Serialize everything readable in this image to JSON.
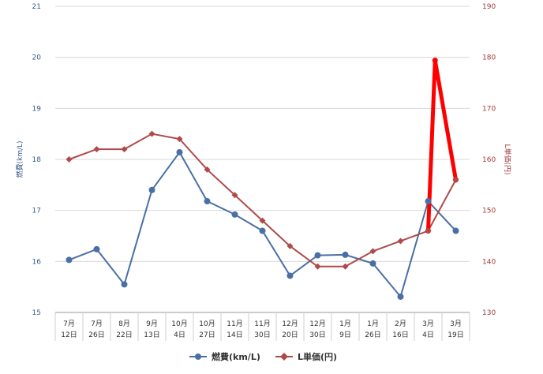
{
  "chart_data": {
    "type": "line",
    "categories": [
      [
        "7月",
        "12日"
      ],
      [
        "7月",
        "26日"
      ],
      [
        "8月",
        "22日"
      ],
      [
        "9月",
        "13日"
      ],
      [
        "10月",
        "4日"
      ],
      [
        "10月",
        "27日"
      ],
      [
        "11月",
        "14日"
      ],
      [
        "11月",
        "30日"
      ],
      [
        "12月",
        "20日"
      ],
      [
        "12月",
        "30日"
      ],
      [
        "1月",
        "9日"
      ],
      [
        "1月",
        "26日"
      ],
      [
        "2月",
        "16日"
      ],
      [
        "3月",
        "4日"
      ],
      [
        "3月",
        "19日"
      ]
    ],
    "y_left": {
      "label": "燃費(km/L)",
      "min": 15,
      "max": 21,
      "ticks": [
        15,
        16,
        17,
        18,
        19,
        20,
        21
      ]
    },
    "y_right": {
      "label": "L単価(円)",
      "min": 130,
      "max": 190,
      "ticks": [
        130,
        140,
        150,
        160,
        170,
        180,
        190
      ]
    },
    "series": [
      {
        "name": "燃費(km/L)",
        "axis": "left",
        "color": "#4a6fa5",
        "marker": "circle",
        "values": [
          16.03,
          16.24,
          15.55,
          17.4,
          18.14,
          17.18,
          16.92,
          16.6,
          15.72,
          16.12,
          16.13,
          15.96,
          15.31,
          17.18,
          16.6
        ]
      },
      {
        "name": "L単価(円)",
        "axis": "right",
        "color": "#b04a4a",
        "marker": "diamond",
        "values": [
          160,
          162,
          162,
          165,
          164,
          158,
          153,
          148,
          143,
          139,
          139,
          142,
          144,
          146,
          156
        ]
      }
    ],
    "annotation": {
      "color": "#ff0000",
      "axis": "right",
      "points": [
        [
          13,
          146
        ],
        [
          13.25,
          179.4
        ],
        [
          14,
          156
        ]
      ]
    },
    "grid": true,
    "legend": "bottom"
  }
}
